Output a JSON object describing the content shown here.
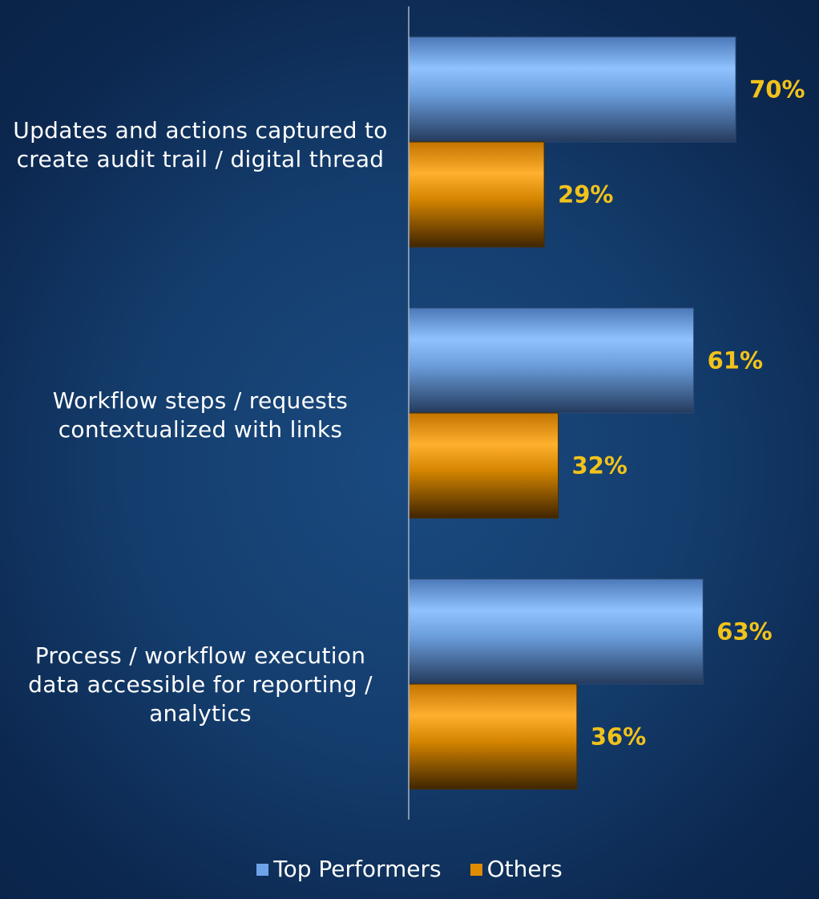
{
  "chart_data": {
    "type": "bar",
    "orientation": "horizontal",
    "categories": [
      "Updates and actions captured to\ncreate audit trail / digital thread",
      "Workflow steps / requests\ncontextualized with links",
      "Process / workflow execution\ndata accessible for reporting /\nanalytics"
    ],
    "series": [
      {
        "name": "Top Performers",
        "values": [
          70,
          61,
          63
        ],
        "labels": [
          "70%",
          "61%",
          "63%"
        ],
        "color": "#6fa3e8"
      },
      {
        "name": "Others",
        "values": [
          29,
          32,
          36
        ],
        "labels": [
          "29%",
          "32%",
          "36%"
        ],
        "color": "#e08c00"
      }
    ],
    "xlim": [
      0,
      100
    ],
    "value_label_color": "#f2c21b",
    "grid": false,
    "legend_position": "bottom"
  }
}
